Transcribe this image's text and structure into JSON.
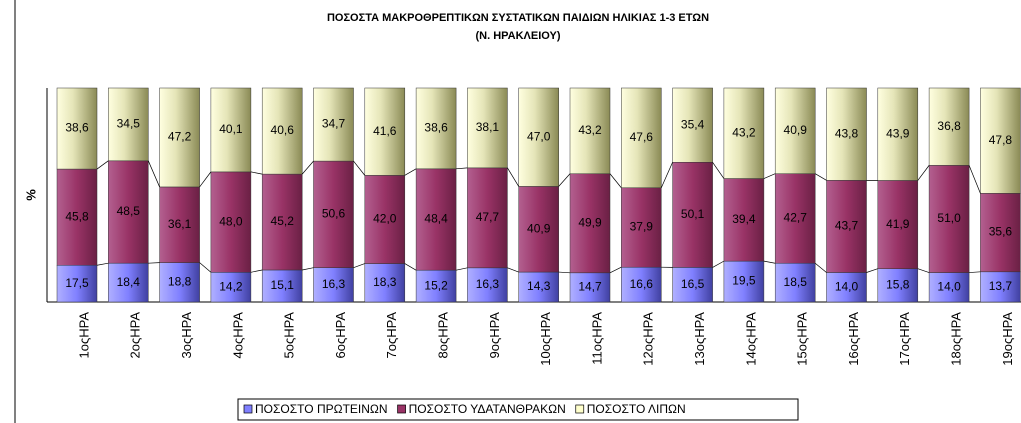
{
  "chart_data": {
    "type": "bar",
    "stacking": "percent",
    "title": "ΠΟΣΟΣΤΑ ΜΑΚΡΟΘΡΕΠΤΙΚΩΝ ΣΥΣΤΑΤΙΚΩΝ ΠΑΙΔΙΩΝ ΗΛΙΚΙΑΣ 1-3 ΕΤΩΝ",
    "subtitle": "(Ν. ΗΡΑΚΛΕΙΟΥ)",
    "y_label": "%",
    "categories": [
      "1οςΗΡΑ",
      "2οςΗΡΑ",
      "3οςΗΡΑ",
      "4οςΗΡΑ",
      "5οςΗΡΑ",
      "6οςΗΡΑ",
      "7οςΗΡΑ",
      "8οςΗΡΑ",
      "9οςΗΡΑ",
      "10οςΗΡΑ",
      "11οςΗΡΑ",
      "12οςΗΡΑ",
      "13οςΗΡΑ",
      "14οςΗΡΑ",
      "15οςΗΡΑ",
      "16οςΗΡΑ",
      "17οςΗΡΑ",
      "18οςΗΡΑ",
      "19οςΗΡΑ"
    ],
    "series": [
      {
        "name": "ΠΟΣΟΣΤΟ ΠΡΩΤΕΙΝΩΝ",
        "color": "#8080ff",
        "values": [
          17.5,
          18.4,
          18.8,
          14.2,
          15.1,
          16.3,
          18.3,
          15.2,
          16.3,
          14.3,
          14.7,
          16.6,
          16.5,
          19.5,
          18.5,
          14.0,
          15.8,
          14.0,
          13.7
        ],
        "value_labels": [
          "17,5",
          "18,4",
          "18,8",
          "14,2",
          "15,1",
          "16,3",
          "18,3",
          "15,2",
          "16,3",
          "14,3",
          "14,7",
          "16,6",
          "16,5",
          "19,5",
          "18,5",
          "14,0",
          "15,8",
          "14,0",
          "13,7"
        ]
      },
      {
        "name": "ΠΟΣΟΣΤΟ ΥΔΑΤΑΝΘΡΑΚΩΝ",
        "color": "#993366",
        "values": [
          45.8,
          48.5,
          36.1,
          48.0,
          45.2,
          50.6,
          42.0,
          48.4,
          47.7,
          40.9,
          49.9,
          37.9,
          50.1,
          39.4,
          42.7,
          43.7,
          41.9,
          51.0,
          35.6
        ],
        "value_labels": [
          "45,8",
          "48,5",
          "36,1",
          "48,0",
          "45,2",
          "50,6",
          "42,0",
          "48,4",
          "47,7",
          "40,9",
          "49,9",
          "37,9",
          "50,1",
          "39,4",
          "42,7",
          "43,7",
          "41,9",
          "51,0",
          "35,6"
        ]
      },
      {
        "name": "ΠΟΣΟΣΤΟ ΛΙΠΩΝ",
        "color": "#ffffcc",
        "values": [
          38.6,
          34.5,
          47.2,
          40.1,
          40.6,
          34.7,
          41.6,
          38.6,
          38.1,
          47.0,
          43.2,
          47.6,
          35.4,
          43.2,
          40.9,
          43.8,
          43.9,
          36.8,
          47.8
        ],
        "value_labels": [
          "38,6",
          "34,5",
          "47,2",
          "40,1",
          "40,6",
          "34,7",
          "41,6",
          "38,6",
          "38,1",
          "47,0",
          "43,2",
          "47,6",
          "35,4",
          "43,2",
          "40,9",
          "43,8",
          "43,9",
          "36,8",
          "47,8"
        ]
      }
    ],
    "legend": "bottom"
  }
}
